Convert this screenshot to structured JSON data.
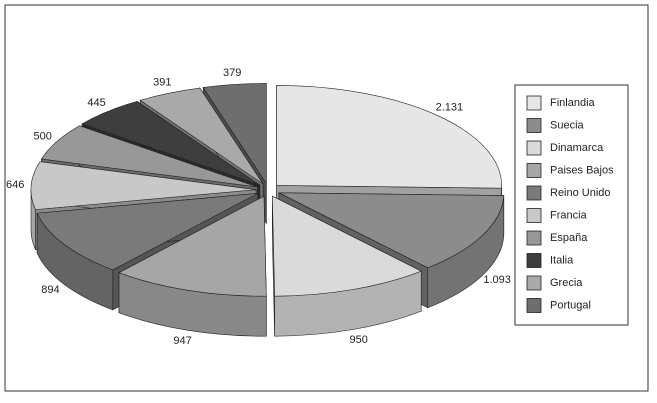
{
  "chart_data": {
    "type": "pie3d",
    "categories": [
      "Finlandia",
      "Suecia",
      "Dinamarca",
      "Paises Bajos",
      "Reino Unido",
      "Francia",
      "España",
      "Italia",
      "Grecia",
      "Portugal"
    ],
    "values": [
      2131,
      1093,
      950,
      947,
      894,
      646,
      500,
      445,
      391,
      379
    ],
    "value_labels": [
      "2.131",
      "1.093",
      "950",
      "947",
      "894",
      "646",
      "500",
      "445",
      "391",
      "379"
    ],
    "colors": [
      "#e6e6e6",
      "#8c8c8c",
      "#dadada",
      "#a6a6a6",
      "#7a7a7a",
      "#c8c8c8",
      "#989898",
      "#3e3e3e",
      "#a9a9a9",
      "#6e6e6e"
    ],
    "legend": "right"
  }
}
